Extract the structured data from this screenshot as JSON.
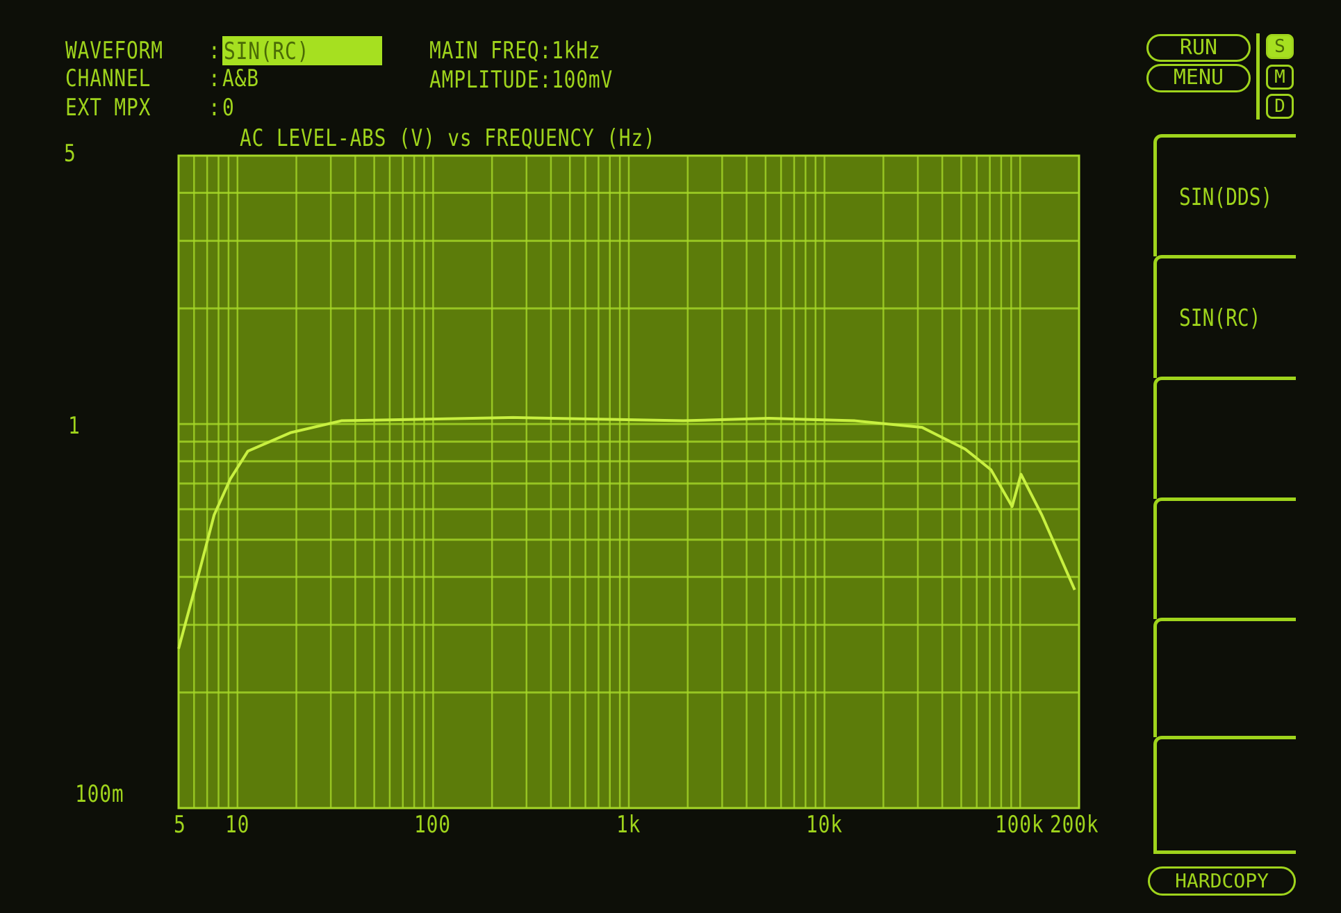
{
  "header": {
    "waveform_label": "WAVEFORM",
    "waveform_value": "SIN(RC)",
    "channel_label": "CHANNEL",
    "channel_value": "A&B",
    "ext_mpx_label": "EXT MPX",
    "ext_mpx_value": "0",
    "separator": ":",
    "main_freq": "MAIN FREQ:1kHz",
    "amplitude": "AMPLITUDE:100mV"
  },
  "side_panel": {
    "run_label": "RUN",
    "menu_label": "MENU",
    "mode_icons": [
      "S",
      "M",
      "D"
    ],
    "softkeys": [
      "SIN(DDS)",
      "SIN(RC)",
      "",
      "",
      "",
      ""
    ],
    "hardcopy_label": "HARDCOPY"
  },
  "colors": {
    "phosphor": "#a6e020",
    "plot_bg": "#5c7c0a",
    "grid": "#a6d828",
    "screen_bg": "#0d0f08"
  },
  "chart_data": {
    "type": "line",
    "title": "AC LEVEL-ABS (V) vs FREQUENCY (Hz)",
    "xscale": "log",
    "yscale": "log",
    "xlim": [
      5,
      200000
    ],
    "ylim": [
      0.1,
      5
    ],
    "x_tick_labels": [
      "5",
      "10",
      "100",
      "1k",
      "10k",
      "100k",
      "200k"
    ],
    "x_tick_values": [
      5,
      10,
      100,
      1000,
      10000,
      100000,
      200000
    ],
    "y_tick_labels": [
      "5",
      "1",
      "100m"
    ],
    "y_tick_values": [
      5,
      1,
      0.1
    ],
    "grid": true,
    "series": [
      {
        "x": [
          5,
          6.2,
          7.6,
          9.2,
          11.3,
          18.7,
          34,
          93,
          256,
          700,
          1900,
          5200,
          14300,
          31600,
          52500,
          71000,
          91000,
          101000,
          129000,
          190000
        ],
        "y": [
          0.26,
          0.39,
          0.58,
          0.72,
          0.85,
          0.95,
          1.02,
          1.03,
          1.04,
          1.03,
          1.02,
          1.035,
          1.02,
          0.98,
          0.86,
          0.76,
          0.61,
          0.74,
          0.58,
          0.37
        ]
      }
    ]
  }
}
